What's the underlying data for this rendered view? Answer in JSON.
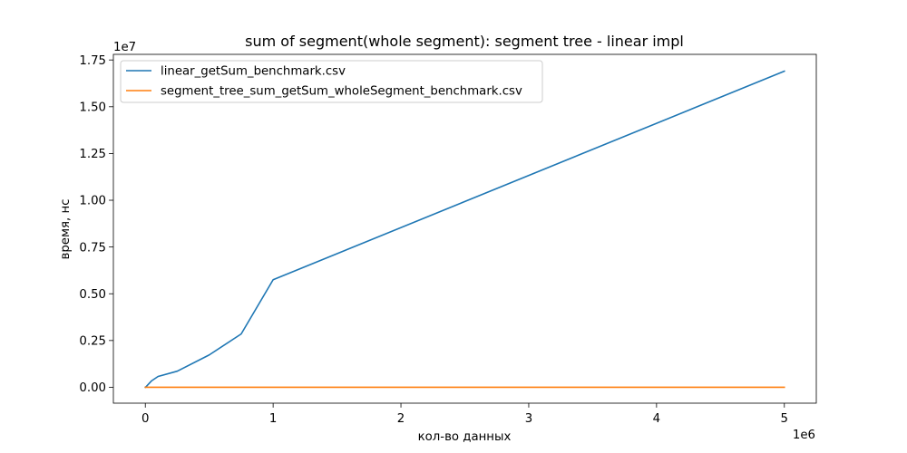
{
  "chart_data": {
    "type": "line",
    "title": "sum of segment(whole segment): segment tree - linear impl",
    "xlabel": "кол-во данных",
    "ylabel": "время, нс",
    "x_multiplier_label": "1e6",
    "y_multiplier_label": "1e7",
    "xlim": [
      -0.25,
      5.25
    ],
    "ylim": [
      -0.085,
      1.78
    ],
    "x_ticks": [
      0,
      1,
      2,
      3,
      4,
      5
    ],
    "x_tick_labels": [
      "0",
      "1",
      "2",
      "3",
      "4",
      "5"
    ],
    "y_ticks": [
      0,
      0.25,
      0.5,
      0.75,
      1.0,
      1.25,
      1.5,
      1.75
    ],
    "y_tick_labels": [
      "0.00",
      "0.25",
      "0.50",
      "0.75",
      "1.00",
      "1.25",
      "1.50",
      "1.75"
    ],
    "grid": false,
    "legend_position": "upper-left",
    "series": [
      {
        "name": "linear_getSum_benchmark.csv",
        "color": "#1f77b4",
        "x": [
          0,
          0.01,
          0.05,
          0.1,
          0.25,
          0.5,
          0.75,
          1.0,
          5.0
        ],
        "y": [
          0.0,
          0.006,
          0.035,
          0.058,
          0.086,
          0.173,
          0.285,
          0.575,
          1.69
        ]
      },
      {
        "name": "segment_tree_sum_getSum_wholeSegment_benchmark.csv",
        "color": "#ff7f0e",
        "x": [
          0,
          0.01,
          0.05,
          0.1,
          0.25,
          0.5,
          0.75,
          1.0,
          5.0
        ],
        "y": [
          0,
          0,
          0,
          0,
          0,
          0,
          0,
          0,
          0
        ]
      }
    ]
  }
}
